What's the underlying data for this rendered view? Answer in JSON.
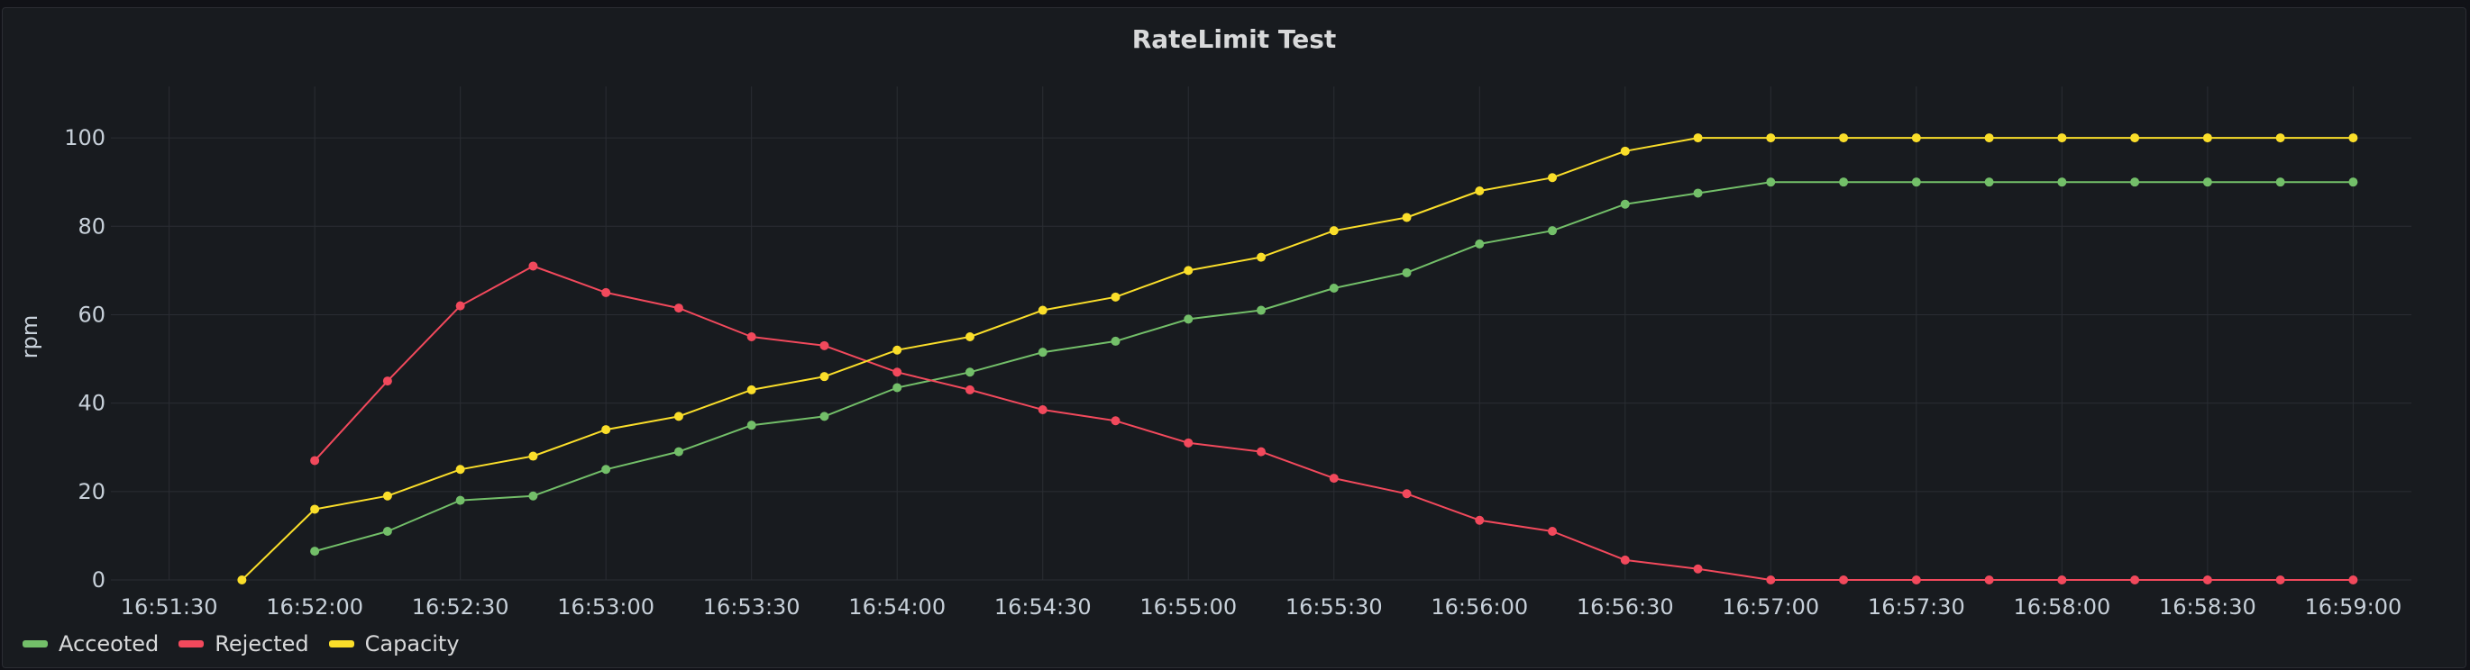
{
  "panel": {
    "title": "RateLimit Test"
  },
  "chart_data": {
    "type": "line",
    "title": "RateLimit Test",
    "ylabel": "rpm",
    "xlabel": "",
    "ylim": [
      0,
      110
    ],
    "yticks": [
      0,
      20,
      40,
      60,
      80,
      100
    ],
    "xlim": [
      "16:51:18",
      "16:59:12"
    ],
    "xticks": [
      "16:51:30",
      "16:52:00",
      "16:52:30",
      "16:53:00",
      "16:53:30",
      "16:54:00",
      "16:54:30",
      "16:55:00",
      "16:55:30",
      "16:56:00",
      "16:56:30",
      "16:57:00",
      "16:57:30",
      "16:58:00",
      "16:58:30",
      "16:59:00"
    ],
    "grid": true,
    "legend_position": "bottom-left",
    "series": [
      {
        "name": "Acceoted",
        "color": "#73bf69",
        "x": [
          "16:52:00",
          "16:52:15",
          "16:52:30",
          "16:52:45",
          "16:53:00",
          "16:53:15",
          "16:53:30",
          "16:53:45",
          "16:54:00",
          "16:54:15",
          "16:54:30",
          "16:54:45",
          "16:55:00",
          "16:55:15",
          "16:55:30",
          "16:55:45",
          "16:56:00",
          "16:56:15",
          "16:56:30",
          "16:56:45",
          "16:57:00",
          "16:57:15",
          "16:57:30",
          "16:57:45",
          "16:58:00",
          "16:58:15",
          "16:58:30",
          "16:58:45",
          "16:59:00"
        ],
        "values": [
          6.5,
          11,
          18,
          19,
          25,
          29,
          35,
          37,
          43.5,
          47,
          51.5,
          54,
          59,
          61,
          66,
          69.5,
          76,
          79,
          85,
          87.5,
          90,
          90,
          90,
          90,
          90,
          90,
          90,
          90,
          90
        ]
      },
      {
        "name": "Rejected",
        "color": "#f2495c",
        "x": [
          "16:52:00",
          "16:52:15",
          "16:52:30",
          "16:52:45",
          "16:53:00",
          "16:53:15",
          "16:53:30",
          "16:53:45",
          "16:54:00",
          "16:54:15",
          "16:54:30",
          "16:54:45",
          "16:55:00",
          "16:55:15",
          "16:55:30",
          "16:55:45",
          "16:56:00",
          "16:56:15",
          "16:56:30",
          "16:56:45",
          "16:57:00",
          "16:57:15",
          "16:57:30",
          "16:57:45",
          "16:58:00",
          "16:58:15",
          "16:58:30",
          "16:58:45",
          "16:59:00"
        ],
        "values": [
          27,
          45,
          62,
          71,
          65,
          61.5,
          55,
          53,
          47,
          43,
          38.5,
          36,
          31,
          29,
          23,
          19.5,
          13.5,
          11,
          4.5,
          2.5,
          0,
          0,
          0,
          0,
          0,
          0,
          0,
          0,
          0
        ]
      },
      {
        "name": "Capacity",
        "color": "#fade2a",
        "x": [
          "16:51:45",
          "16:52:00",
          "16:52:15",
          "16:52:30",
          "16:52:45",
          "16:53:00",
          "16:53:15",
          "16:53:30",
          "16:53:45",
          "16:54:00",
          "16:54:15",
          "16:54:30",
          "16:54:45",
          "16:55:00",
          "16:55:15",
          "16:55:30",
          "16:55:45",
          "16:56:00",
          "16:56:15",
          "16:56:30",
          "16:56:45",
          "16:57:00",
          "16:57:15",
          "16:57:30",
          "16:57:45",
          "16:58:00",
          "16:58:15",
          "16:58:30",
          "16:58:45",
          "16:59:00"
        ],
        "values": [
          0,
          16,
          19,
          25,
          28,
          34,
          37,
          43,
          46,
          52,
          55,
          61,
          64,
          70,
          73,
          79,
          82,
          88,
          91,
          97,
          100,
          100,
          100,
          100,
          100,
          100,
          100,
          100,
          100,
          100
        ]
      }
    ]
  }
}
